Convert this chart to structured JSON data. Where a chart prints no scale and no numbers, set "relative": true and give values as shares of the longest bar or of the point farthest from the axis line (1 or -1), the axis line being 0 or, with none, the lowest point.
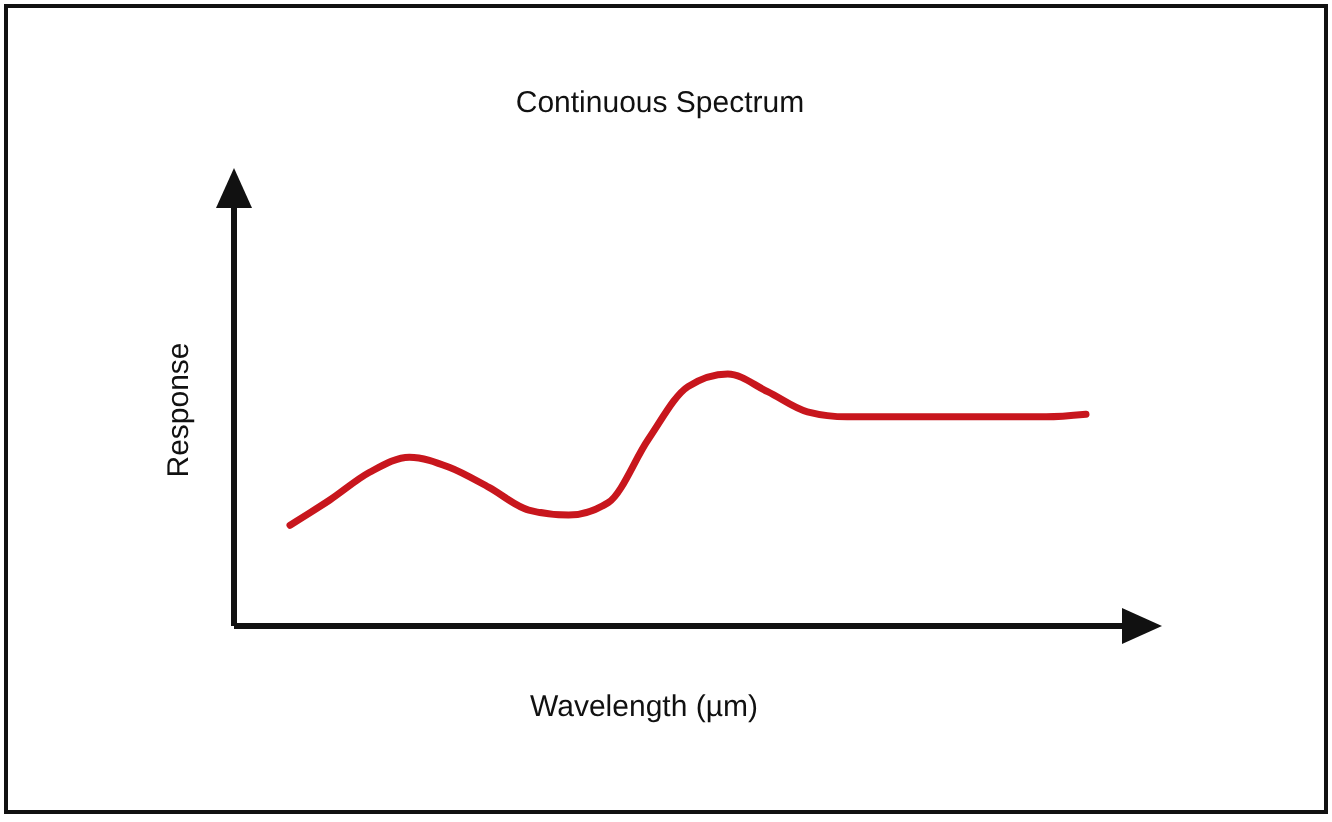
{
  "chart_data": {
    "type": "line",
    "title": "Continuous Spectrum",
    "xlabel": "Wavelength (µm)",
    "ylabel": "Response",
    "relative": true,
    "categories": [
      null,
      null,
      null,
      null,
      null,
      null,
      null,
      null,
      null,
      null,
      null,
      null,
      null,
      null,
      null,
      null,
      null,
      null,
      null,
      null,
      null
    ],
    "series": [
      {
        "color": "#c8161d",
        "values": [
          0.4,
          0.5,
          0.61,
          0.67,
          0.63,
          0.55,
          0.46,
          0.44,
          0.49,
          0.74,
          0.95,
          1.0,
          0.93,
          0.85,
          0.83,
          0.83,
          0.83,
          0.83,
          0.83,
          0.83,
          0.84
        ]
      }
    ]
  }
}
